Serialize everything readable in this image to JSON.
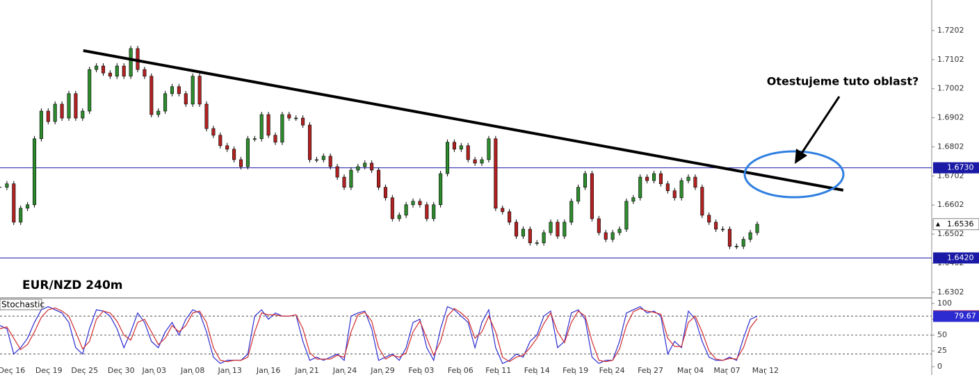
{
  "chart_data": [
    {
      "type": "candlestick",
      "title": "EUR/NZD 240m",
      "close": [
        1.6663,
        1.6675,
        1.6543,
        1.6591,
        1.6603,
        1.683,
        1.6925,
        1.6889,
        1.6949,
        1.6901,
        1.6985,
        1.6901,
        1.6925,
        1.7068,
        1.708,
        1.7056,
        1.7045,
        1.708,
        1.7045,
        1.714,
        1.7068,
        1.7045,
        1.6913,
        1.6925,
        1.6985,
        1.7009,
        1.6985,
        1.6949,
        1.7045,
        1.6949,
        1.6865,
        1.6842,
        1.6806,
        1.6794,
        1.6758,
        1.6734,
        1.683,
        1.683,
        1.6913,
        1.6842,
        1.6818,
        1.6913,
        1.6901,
        1.6901,
        1.6877,
        1.6758,
        1.6758,
        1.677,
        1.6734,
        1.6698,
        1.6663,
        1.6722,
        1.6734,
        1.6746,
        1.6722,
        1.6663,
        1.6627,
        1.6555,
        1.6567,
        1.6603,
        1.6615,
        1.6603,
        1.6555,
        1.6603,
        1.671,
        1.6818,
        1.6794,
        1.6806,
        1.6758,
        1.6746,
        1.6758,
        1.683,
        1.6591,
        1.6579,
        1.6543,
        1.6495,
        1.6519,
        1.6472,
        1.6472,
        1.6507,
        1.6543,
        1.6495,
        1.6543,
        1.6615,
        1.6663,
        1.671,
        1.6555,
        1.6507,
        1.6484,
        1.6507,
        1.6519,
        1.6615,
        1.6627,
        1.6698,
        1.6686,
        1.671,
        1.6675,
        1.6651,
        1.6627,
        1.6686,
        1.6698,
        1.6663,
        1.6567,
        1.6543,
        1.6519,
        1.6519,
        1.646,
        1.646,
        1.6484,
        1.6507,
        1.6536
      ],
      "up_color": "#2e8b2e",
      "down_color": "#b22222",
      "xlim": [
        0,
        135.35
      ],
      "xticks": [
        {
          "value": 1.7,
          "label": "Dec 16"
        },
        {
          "value": 7.1,
          "label": "Dec 19"
        },
        {
          "value": 12.3,
          "label": "Dec 25"
        },
        {
          "value": 17.6,
          "label": "Dec 30"
        },
        {
          "value": 22.4,
          "label": "Jan 03"
        },
        {
          "value": 28,
          "label": "Jan 08"
        },
        {
          "value": 33.4,
          "label": "Jan 13"
        },
        {
          "value": 39,
          "label": "Jan 16"
        },
        {
          "value": 44.6,
          "label": "Jan 21"
        },
        {
          "value": 50.1,
          "label": "Jan 24"
        },
        {
          "value": 55.6,
          "label": "Jan 29"
        },
        {
          "value": 61.2,
          "label": "Feb 03"
        },
        {
          "value": 66.9,
          "label": "Feb 06"
        },
        {
          "value": 72.4,
          "label": "Feb 11"
        },
        {
          "value": 78,
          "label": "Feb 14"
        },
        {
          "value": 83.6,
          "label": "Feb 19"
        },
        {
          "value": 88.9,
          "label": "Feb 24"
        },
        {
          "value": 94.5,
          "label": "Feb 27"
        },
        {
          "value": 100.3,
          "label": "Mar 04"
        },
        {
          "value": 105.6,
          "label": "Mar 07"
        },
        {
          "value": 111.2,
          "label": "Mar 12"
        }
      ],
      "ylim": [
        1.6285,
        1.7307
      ],
      "yticks": [
        1.6302,
        1.6402,
        1.6502,
        1.6602,
        1.6702,
        1.6802,
        1.6902,
        1.7002,
        1.7102,
        1.7202
      ],
      "hlines": [
        {
          "value": 1.673,
          "label": "1.6730"
        },
        {
          "value": 1.642,
          "label": "1.6420"
        }
      ],
      "hline_color": "#1a1aa6",
      "trendline": {
        "x": [
          12.1,
          122.5
        ],
        "y": [
          1.7133,
          1.6653
        ]
      },
      "annotation": "Otestujeme tuto oblast?"
    },
    {
      "type": "line",
      "title": "Stochastic",
      "series": [
        {
          "name": "%K",
          "color": "#2b2bd1",
          "values": [
            65,
            60,
            20,
            30,
            45,
            70,
            90,
            95,
            90,
            85,
            70,
            30,
            20,
            60,
            90,
            88,
            80,
            60,
            30,
            55,
            85,
            70,
            40,
            30,
            55,
            70,
            50,
            75,
            90,
            85,
            55,
            15,
            5,
            10,
            10,
            10,
            20,
            80,
            90,
            75,
            85,
            80,
            80,
            82,
            40,
            10,
            15,
            10,
            15,
            20,
            10,
            80,
            85,
            88,
            60,
            10,
            15,
            20,
            10,
            30,
            70,
            75,
            30,
            10,
            60,
            95,
            90,
            80,
            70,
            30,
            70,
            90,
            30,
            5,
            10,
            20,
            15,
            40,
            50,
            80,
            88,
            30,
            40,
            85,
            90,
            75,
            15,
            5,
            10,
            10,
            40,
            85,
            90,
            95,
            85,
            88,
            80,
            20,
            40,
            30,
            88,
            75,
            40,
            15,
            10,
            10,
            15,
            10,
            45,
            75,
            79.67
          ]
        },
        {
          "name": "%D",
          "color": "#d12b2b",
          "values": [
            60,
            63,
            45,
            27,
            35,
            55,
            78,
            90,
            93,
            88,
            80,
            55,
            28,
            40,
            75,
            88,
            85,
            72,
            50,
            42,
            70,
            75,
            55,
            35,
            45,
            65,
            55,
            65,
            85,
            88,
            70,
            30,
            10,
            8,
            10,
            10,
            15,
            55,
            85,
            82,
            82,
            80,
            80,
            82,
            60,
            22,
            12,
            12,
            12,
            18,
            15,
            55,
            82,
            86,
            72,
            30,
            12,
            18,
            15,
            22,
            55,
            72,
            45,
            18,
            40,
            80,
            92,
            85,
            75,
            45,
            55,
            80,
            55,
            15,
            8,
            15,
            18,
            30,
            45,
            68,
            85,
            55,
            38,
            70,
            88,
            80,
            40,
            10,
            8,
            10,
            28,
            65,
            87,
            92,
            88,
            86,
            83,
            45,
            32,
            32,
            70,
            80,
            55,
            25,
            12,
            10,
            13,
            12,
            30,
            62,
            76
          ]
        }
      ],
      "xlim": [
        0,
        135.35
      ],
      "ylim": [
        -13.2,
        107.7
      ],
      "yticks": [
        0,
        25,
        50,
        75,
        100
      ],
      "levels": [
        20,
        50,
        80
      ]
    }
  ]
}
